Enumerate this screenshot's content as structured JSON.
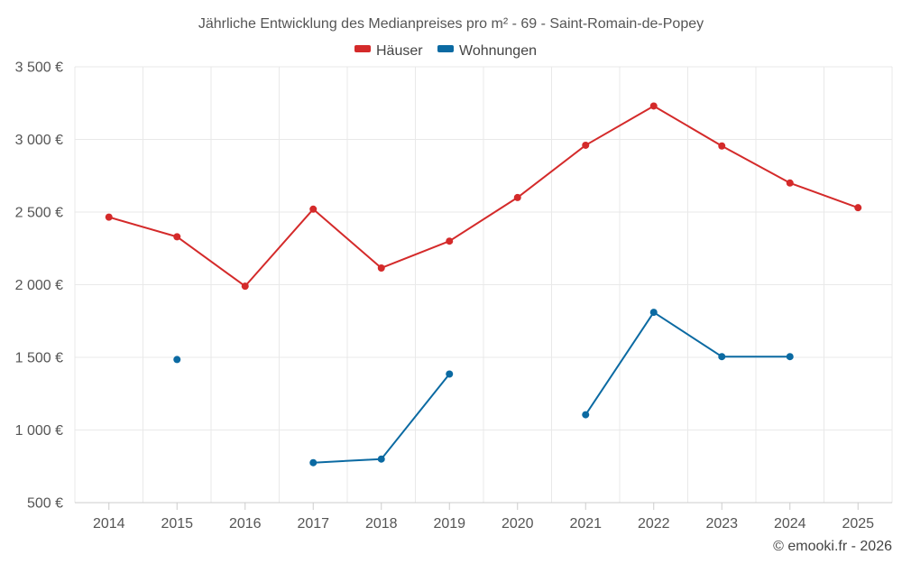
{
  "chart_data": {
    "type": "line",
    "title": "Jährliche Entwicklung des Medianpreises pro m² - 69 - Saint-Romain-de-Popey",
    "xlabel": "",
    "ylabel": "",
    "categories": [
      "2014",
      "2015",
      "2016",
      "2017",
      "2018",
      "2019",
      "2020",
      "2021",
      "2022",
      "2023",
      "2024",
      "2025"
    ],
    "ylim": [
      500,
      3500
    ],
    "yticks": [
      500,
      1000,
      1500,
      2000,
      2500,
      3000,
      3500
    ],
    "ytick_labels": [
      "500 €",
      "1 000 €",
      "1 500 €",
      "2 000 €",
      "2 500 €",
      "3 000 €",
      "3 500 €"
    ],
    "grid": true,
    "legend_position": "top-center",
    "series": [
      {
        "name": "Häuser",
        "color": "#d42a2a",
        "values": [
          2465,
          2330,
          1990,
          2520,
          2115,
          2300,
          2600,
          2960,
          3230,
          2955,
          2700,
          2530
        ]
      },
      {
        "name": "Wohnungen",
        "color": "#0b6aa2",
        "values": [
          null,
          1485,
          null,
          775,
          800,
          1385,
          null,
          1105,
          1810,
          1505,
          1505,
          null
        ]
      }
    ]
  },
  "credit": "© emooki.fr - 2026"
}
